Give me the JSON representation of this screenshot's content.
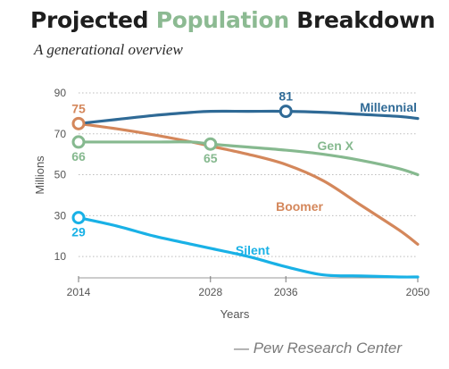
{
  "header": {
    "title_part1": "Projected ",
    "title_part2": "Population",
    "title_part3": " Breakdown",
    "subtitle": "A generational overview"
  },
  "source": "— Pew Research Center",
  "colors": {
    "Millennial": "#2f6a96",
    "Gen X": "#86b98f",
    "Boomer": "#d4875b",
    "Silent": "#19b1e6",
    "grid": "#bdbdbd"
  },
  "chart_data": {
    "type": "line",
    "title": "Projected Population Breakdown",
    "subtitle": "A generational overview",
    "xlabel": "Years",
    "ylabel": "Millions",
    "x_ticks": [
      2014,
      2028,
      2036,
      2050
    ],
    "y_ticks": [
      10,
      30,
      50,
      70,
      90
    ],
    "xlim": [
      2014,
      2050
    ],
    "ylim": [
      0,
      90
    ],
    "grid": true,
    "series": [
      {
        "name": "Millennial",
        "x": [
          2014,
          2018,
          2022,
          2026,
          2028,
          2032,
          2036,
          2040,
          2044,
          2048,
          2050
        ],
        "values": [
          75,
          77,
          79,
          80.5,
          81,
          81,
          81,
          80.5,
          79.5,
          78.5,
          77.5
        ],
        "markers": [
          {
            "x": 2036,
            "y": 81,
            "label": "81"
          }
        ]
      },
      {
        "name": "Gen X",
        "x": [
          2014,
          2018,
          2022,
          2026,
          2028,
          2032,
          2036,
          2040,
          2044,
          2048,
          2050
        ],
        "values": [
          66,
          66,
          66,
          66,
          65,
          63.5,
          62,
          60,
          57,
          53,
          50
        ],
        "markers": [
          {
            "x": 2014,
            "y": 66,
            "label": "66"
          },
          {
            "x": 2028,
            "y": 65,
            "label": "65"
          }
        ]
      },
      {
        "name": "Boomer",
        "x": [
          2014,
          2018,
          2022,
          2026,
          2028,
          2032,
          2036,
          2040,
          2044,
          2048,
          2050
        ],
        "values": [
          75,
          72.5,
          69.5,
          66,
          64,
          60,
          55,
          47,
          35,
          23,
          16
        ],
        "markers": [
          {
            "x": 2014,
            "y": 75,
            "label": "75"
          }
        ]
      },
      {
        "name": "Silent",
        "x": [
          2014,
          2018,
          2022,
          2026,
          2028,
          2032,
          2036,
          2040,
          2044,
          2048,
          2050
        ],
        "values": [
          29,
          25,
          20,
          16,
          14,
          10,
          5,
          1,
          0.5,
          0,
          0
        ],
        "markers": [
          {
            "x": 2014,
            "y": 29,
            "label": "29"
          }
        ]
      }
    ]
  }
}
